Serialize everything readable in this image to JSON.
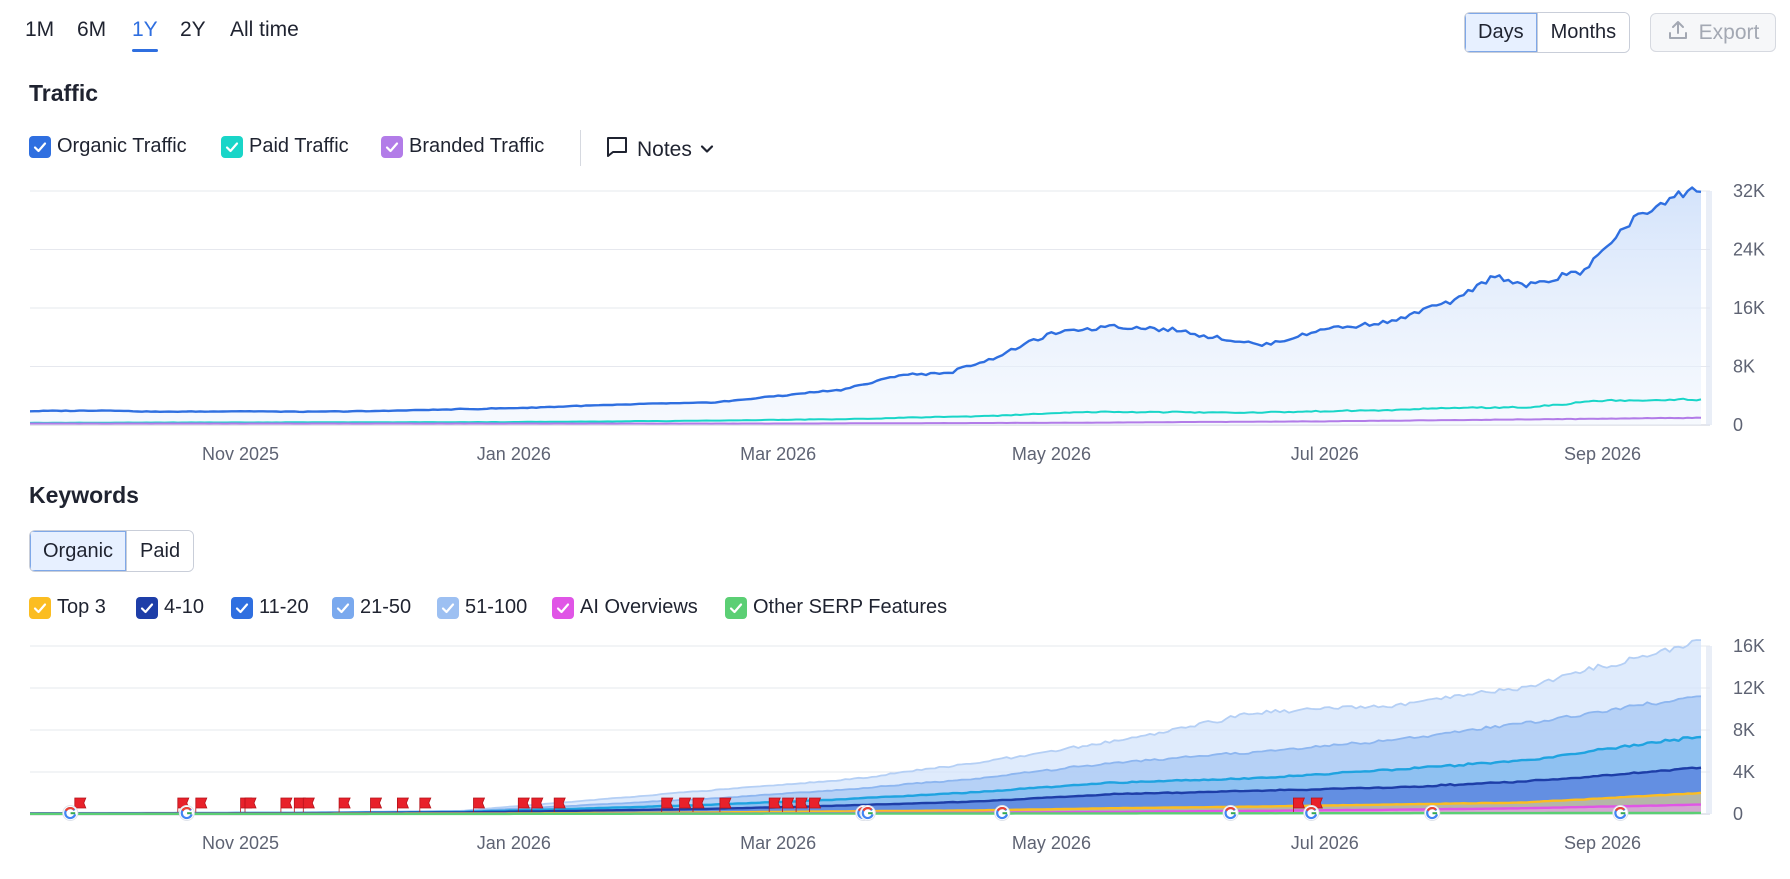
{
  "range_tabs": [
    "1M",
    "6M",
    "1Y",
    "2Y",
    "All time"
  ],
  "range_active": "1Y",
  "view_toggle": {
    "days": "Days",
    "months": "Months",
    "active": "Days"
  },
  "export_label": "Export",
  "traffic": {
    "title": "Traffic",
    "legend": [
      {
        "label": "Organic Traffic",
        "color": "#2f6fe0"
      },
      {
        "label": "Paid Traffic",
        "color": "#19d5c8"
      },
      {
        "label": "Branded Traffic",
        "color": "#b27ce8"
      }
    ],
    "notes_label": "Notes"
  },
  "keywords": {
    "title": "Keywords",
    "type_toggle": {
      "organic": "Organic",
      "paid": "Paid",
      "active": "Organic"
    },
    "legend": [
      {
        "label": "Top 3",
        "color": "#fbbd22"
      },
      {
        "label": "4-10",
        "color": "#1e3ea8"
      },
      {
        "label": "11-20",
        "color": "#2f6fe0"
      },
      {
        "label": "21-50",
        "color": "#7aa9ee"
      },
      {
        "label": "51-100",
        "color": "#9dc0f2"
      },
      {
        "label": "AI Overviews",
        "color": "#e055e6"
      },
      {
        "label": "Other SERP Features",
        "color": "#5bcf74"
      }
    ]
  },
  "chart_data": [
    {
      "type": "line",
      "title": "Traffic",
      "x_ticks": [
        "Nov 2025",
        "Jan 2026",
        "Mar 2026",
        "May 2026",
        "Jul 2026",
        "Sep 2026"
      ],
      "y_ticks": [
        "0",
        "8K",
        "16K",
        "24K",
        "32K"
      ],
      "ylim": [
        0,
        32000
      ],
      "xlim": [
        "2025-09-15",
        "2026-09-25"
      ],
      "grid": true,
      "series": [
        {
          "name": "Organic Traffic",
          "color": "#2f6fe0",
          "fill": true,
          "x": [
            "2025-09-15",
            "2025-10-01",
            "2025-10-15",
            "2025-11-01",
            "2025-11-15",
            "2025-12-01",
            "2025-12-15",
            "2026-01-01",
            "2026-01-15",
            "2026-02-01",
            "2026-02-15",
            "2026-03-01",
            "2026-03-15",
            "2026-03-29",
            "2026-04-08",
            "2026-04-20",
            "2026-05-01",
            "2026-05-15",
            "2026-05-27",
            "2026-06-07",
            "2026-06-17",
            "2026-07-01",
            "2026-07-15",
            "2026-07-30",
            "2026-08-08",
            "2026-08-15",
            "2026-08-28",
            "2026-09-08",
            "2026-09-23"
          ],
          "y": [
            1900,
            2000,
            1800,
            1900,
            1800,
            1900,
            2100,
            2300,
            2600,
            2900,
            3100,
            4000,
            4800,
            6900,
            7100,
            9600,
            12600,
            13600,
            13100,
            11900,
            10900,
            13200,
            14000,
            17100,
            20400,
            18800,
            21200,
            28400,
            32600
          ]
        },
        {
          "name": "Paid Traffic",
          "color": "#19d5c8",
          "fill": false,
          "x": [
            "2025-09-15",
            "2025-11-01",
            "2026-01-01",
            "2026-02-15",
            "2026-03-15",
            "2026-04-15",
            "2026-05-01",
            "2026-05-15",
            "2026-06-15",
            "2026-07-01",
            "2026-07-15",
            "2026-08-01",
            "2026-08-15",
            "2026-09-01",
            "2026-09-23"
          ],
          "y": [
            300,
            350,
            400,
            600,
            800,
            1200,
            1600,
            1800,
            1700,
            1900,
            2000,
            2400,
            2400,
            3400,
            3500
          ]
        },
        {
          "name": "Branded Traffic",
          "color": "#b27ce8",
          "fill": false,
          "x": [
            "2025-09-15",
            "2026-03-01",
            "2026-05-01",
            "2026-07-01",
            "2026-09-23"
          ],
          "y": [
            200,
            200,
            300,
            500,
            1000
          ]
        }
      ]
    },
    {
      "type": "area",
      "title": "Keywords",
      "x_ticks": [
        "Nov 2025",
        "Jan 2026",
        "Mar 2026",
        "May 2026",
        "Jul 2026",
        "Sep 2026"
      ],
      "y_ticks": [
        "0",
        "4K",
        "8K",
        "12K",
        "16K"
      ],
      "ylim": [
        0,
        16000
      ],
      "xlim": [
        "2025-09-15",
        "2026-09-25"
      ],
      "grid": true,
      "x": [
        "2025-09-15",
        "2025-11-15",
        "2025-12-20",
        "2026-01-15",
        "2026-02-15",
        "2026-03-15",
        "2026-04-15",
        "2026-05-15",
        "2026-06-15",
        "2026-07-15",
        "2026-08-15",
        "2026-09-23"
      ],
      "series": [
        {
          "name": "51-100",
          "color": "#c2d7f6",
          "values": [
            100,
            150,
            300,
            1200,
            2300,
            3200,
            4900,
            6900,
            9600,
            10300,
            12100,
            16500
          ]
        },
        {
          "name": "21-50",
          "color": "#8bb5ef",
          "values": [
            80,
            120,
            250,
            800,
            1500,
            2300,
            3400,
            4900,
            5900,
            7000,
            8600,
            11300
          ]
        },
        {
          "name": "11-20",
          "color": "#2fa6e0",
          "values": [
            60,
            100,
            200,
            500,
            900,
            1400,
            2100,
            3000,
            3400,
            4200,
            5100,
            7400
          ]
        },
        {
          "name": "4-10",
          "color": "#1e3ea8",
          "values": [
            50,
            80,
            150,
            300,
            500,
            800,
            1200,
            1900,
            2200,
            2500,
            3100,
            4400
          ]
        },
        {
          "name": "Top 3",
          "color": "#fbbd22",
          "values": [
            20,
            30,
            50,
            80,
            150,
            250,
            350,
            550,
            700,
            900,
            1100,
            2000
          ]
        },
        {
          "name": "AI Overviews",
          "color": "#e055e6",
          "values": [
            10,
            10,
            20,
            30,
            50,
            80,
            120,
            200,
            300,
            400,
            550,
            900
          ]
        },
        {
          "name": "Other SERP Features",
          "color": "#5bcf74",
          "values": [
            10,
            10,
            10,
            20,
            30,
            40,
            50,
            60,
            70,
            80,
            90,
            100
          ]
        }
      ],
      "annotations": {
        "google_update_dates": [
          "2025-09-24",
          "2025-10-20",
          "2026-03-20",
          "2026-03-21",
          "2026-04-20",
          "2026-06-10",
          "2026-06-28",
          "2026-07-25",
          "2026-09-05"
        ],
        "note_flag_dates": [
          "2025-09-25",
          "2025-10-18",
          "2025-10-22",
          "2025-11-01",
          "2025-11-02",
          "2025-11-10",
          "2025-11-13",
          "2025-11-15",
          "2025-11-23",
          "2025-11-30",
          "2025-12-06",
          "2025-12-11",
          "2025-12-23",
          "2026-01-02",
          "2026-01-05",
          "2026-01-10",
          "2026-02-03",
          "2026-02-07",
          "2026-02-10",
          "2026-02-16",
          "2026-02-27",
          "2026-03-02",
          "2026-03-05",
          "2026-03-08",
          "2026-06-24",
          "2026-06-28"
        ]
      }
    }
  ]
}
